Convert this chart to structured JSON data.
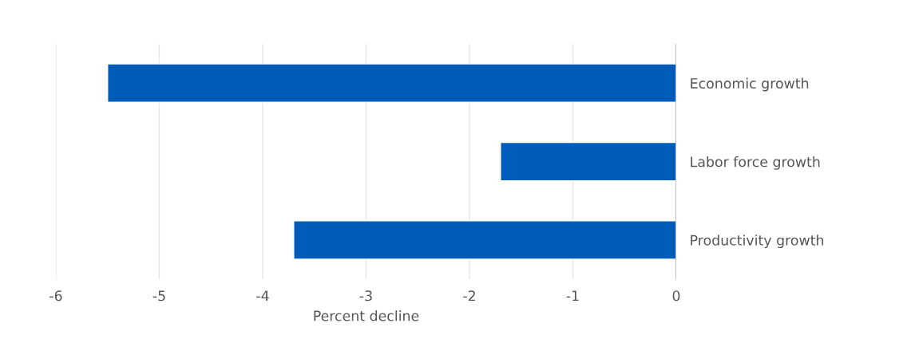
{
  "chart_data": {
    "type": "bar",
    "orientation": "horizontal",
    "xlabel": "Percent decline",
    "categories": [
      "Economic growth",
      "Labor force growth",
      "Productivity growth"
    ],
    "values": [
      -5.5,
      -1.7,
      -3.7
    ],
    "color": "#005cb9",
    "xlim": [
      -6,
      0
    ],
    "xticks": [
      -6,
      -5,
      -4,
      -3,
      -2,
      -1,
      0
    ],
    "grid": "x",
    "legend": false
  }
}
